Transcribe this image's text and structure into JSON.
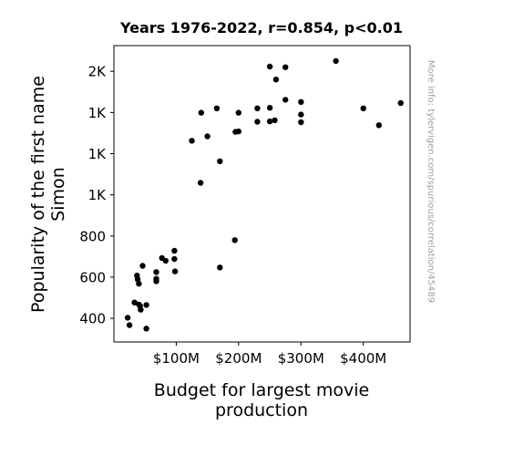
{
  "chart_data": {
    "type": "scatter",
    "title": "Years 1976-2022, r=0.854, p<0.01",
    "xlabel_lines": [
      "Budget for largest movie",
      "production"
    ],
    "ylabel_lines": [
      "Popularity of the first name",
      "Simon"
    ],
    "side_note": "More info: tylervigen.com/spurious/correlation/45489",
    "xlim": [
      0,
      475
    ],
    "ylim": [
      285,
      1725
    ],
    "x_ticks": [
      {
        "value": 100,
        "label": "$100M"
      },
      {
        "value": 200,
        "label": "$200M"
      },
      {
        "value": 300,
        "label": "$300M"
      },
      {
        "value": 400,
        "label": "$400M"
      }
    ],
    "y_ticks": [
      {
        "value": 400,
        "label": "400"
      },
      {
        "value": 600,
        "label": "600"
      },
      {
        "value": 800,
        "label": "800"
      },
      {
        "value": 1000,
        "label": "1K"
      },
      {
        "value": 1200,
        "label": "1K"
      },
      {
        "value": 1400,
        "label": "1K"
      },
      {
        "value": 1600,
        "label": "2K"
      }
    ],
    "point_color": "#000000",
    "points": [
      {
        "x": 22,
        "y": 403
      },
      {
        "x": 25,
        "y": 367
      },
      {
        "x": 33,
        "y": 477
      },
      {
        "x": 37,
        "y": 608
      },
      {
        "x": 38,
        "y": 590
      },
      {
        "x": 40,
        "y": 568
      },
      {
        "x": 40,
        "y": 467
      },
      {
        "x": 42,
        "y": 460
      },
      {
        "x": 43,
        "y": 442
      },
      {
        "x": 46,
        "y": 655
      },
      {
        "x": 52,
        "y": 350
      },
      {
        "x": 52,
        "y": 465
      },
      {
        "x": 68,
        "y": 625
      },
      {
        "x": 68,
        "y": 592
      },
      {
        "x": 68,
        "y": 580
      },
      {
        "x": 77,
        "y": 693
      },
      {
        "x": 83,
        "y": 680
      },
      {
        "x": 97,
        "y": 728
      },
      {
        "x": 97,
        "y": 688
      },
      {
        "x": 98,
        "y": 628
      },
      {
        "x": 125,
        "y": 1263
      },
      {
        "x": 139,
        "y": 1058
      },
      {
        "x": 140,
        "y": 1399
      },
      {
        "x": 150,
        "y": 1284
      },
      {
        "x": 165,
        "y": 1420
      },
      {
        "x": 170,
        "y": 1163
      },
      {
        "x": 170,
        "y": 647
      },
      {
        "x": 194,
        "y": 780
      },
      {
        "x": 195,
        "y": 1306
      },
      {
        "x": 200,
        "y": 1399
      },
      {
        "x": 200,
        "y": 1308
      },
      {
        "x": 230,
        "y": 1355
      },
      {
        "x": 230,
        "y": 1420
      },
      {
        "x": 250,
        "y": 1357
      },
      {
        "x": 250,
        "y": 1623
      },
      {
        "x": 250,
        "y": 1423
      },
      {
        "x": 258,
        "y": 1362
      },
      {
        "x": 260,
        "y": 1560
      },
      {
        "x": 275,
        "y": 1620
      },
      {
        "x": 275,
        "y": 1462
      },
      {
        "x": 300,
        "y": 1390
      },
      {
        "x": 300,
        "y": 1451
      },
      {
        "x": 300,
        "y": 1353
      },
      {
        "x": 356,
        "y": 1650
      },
      {
        "x": 400,
        "y": 1420
      },
      {
        "x": 425,
        "y": 1338
      },
      {
        "x": 460,
        "y": 1446
      }
    ]
  }
}
